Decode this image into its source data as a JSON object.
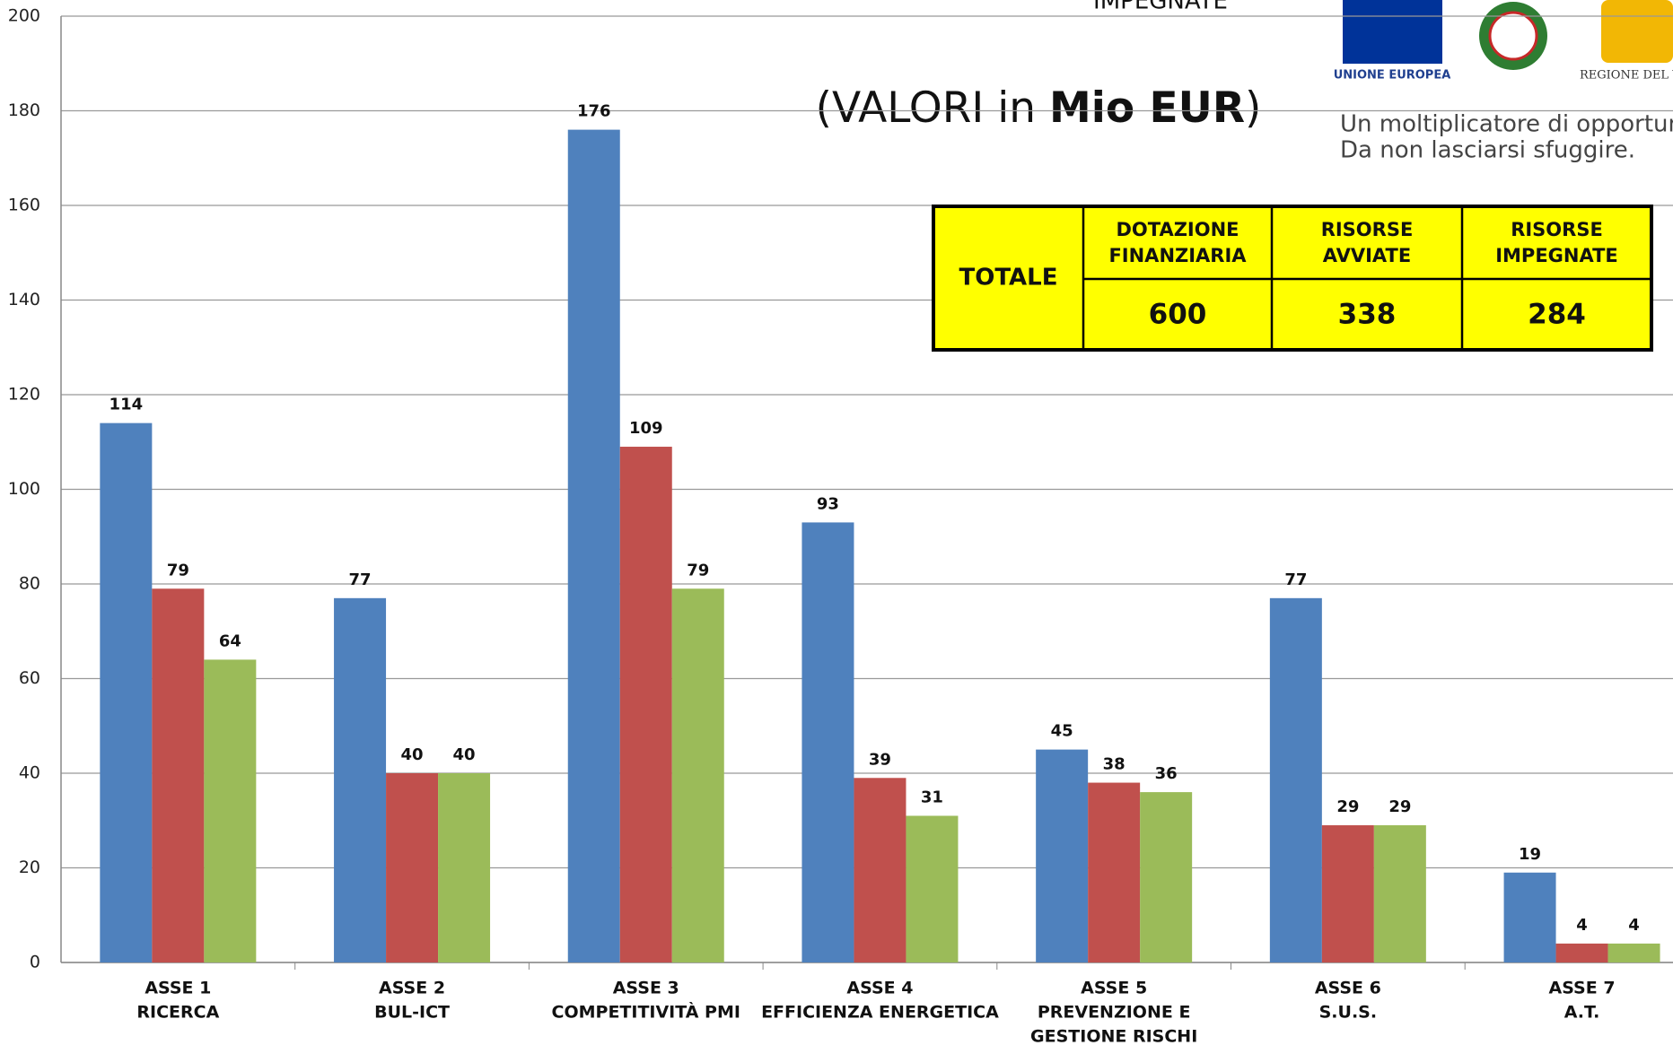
{
  "chart_data": {
    "type": "bar",
    "title": {
      "prefix": "(VALORI in ",
      "bold": "Mio EUR",
      "suffix": ")"
    },
    "legend_fragment": "IMPEGNATE",
    "categories": [
      [
        "ASSE 1",
        "RICERCA"
      ],
      [
        "ASSE 2",
        "BUL-ICT"
      ],
      [
        "ASSE 3",
        "COMPETITIVITÀ PMI"
      ],
      [
        "ASSE 4",
        "EFFICIENZA ENERGETICA"
      ],
      [
        "ASSE 5",
        "PREVENZIONE E",
        "GESTIONE RISCHI"
      ],
      [
        "ASSE 6",
        "S.U.S."
      ],
      [
        "ASSE 7",
        "A.T."
      ]
    ],
    "series": [
      {
        "color": "#4f81bd",
        "values": [
          114,
          77,
          176,
          93,
          45,
          77,
          19
        ]
      },
      {
        "color": "#c0504d",
        "values": [
          79,
          40,
          109,
          39,
          38,
          29,
          4
        ]
      },
      {
        "color": "#9bbb59",
        "values": [
          64,
          40,
          79,
          31,
          36,
          29,
          4
        ]
      }
    ],
    "ylim": [
      0,
      200
    ],
    "yticks": [
      0,
      20,
      40,
      60,
      80,
      100,
      120,
      140,
      160,
      180,
      200
    ],
    "grid": true,
    "table": {
      "row_label": "TOTALE",
      "headers": [
        [
          "DOTAZIONE",
          "FINANZIARIA"
        ],
        [
          "RISORSE",
          "AVVIATE"
        ],
        [
          "RISORSE",
          "IMPEGNATE"
        ]
      ],
      "values": [
        600,
        338,
        284
      ]
    }
  },
  "logos": {
    "eu": "UNIONE EUROPEA",
    "region": "REGIONE DEL VENE"
  },
  "slogan": [
    "Un moltiplicatore di opportunit",
    "Da non lasciarsi sfuggire."
  ]
}
